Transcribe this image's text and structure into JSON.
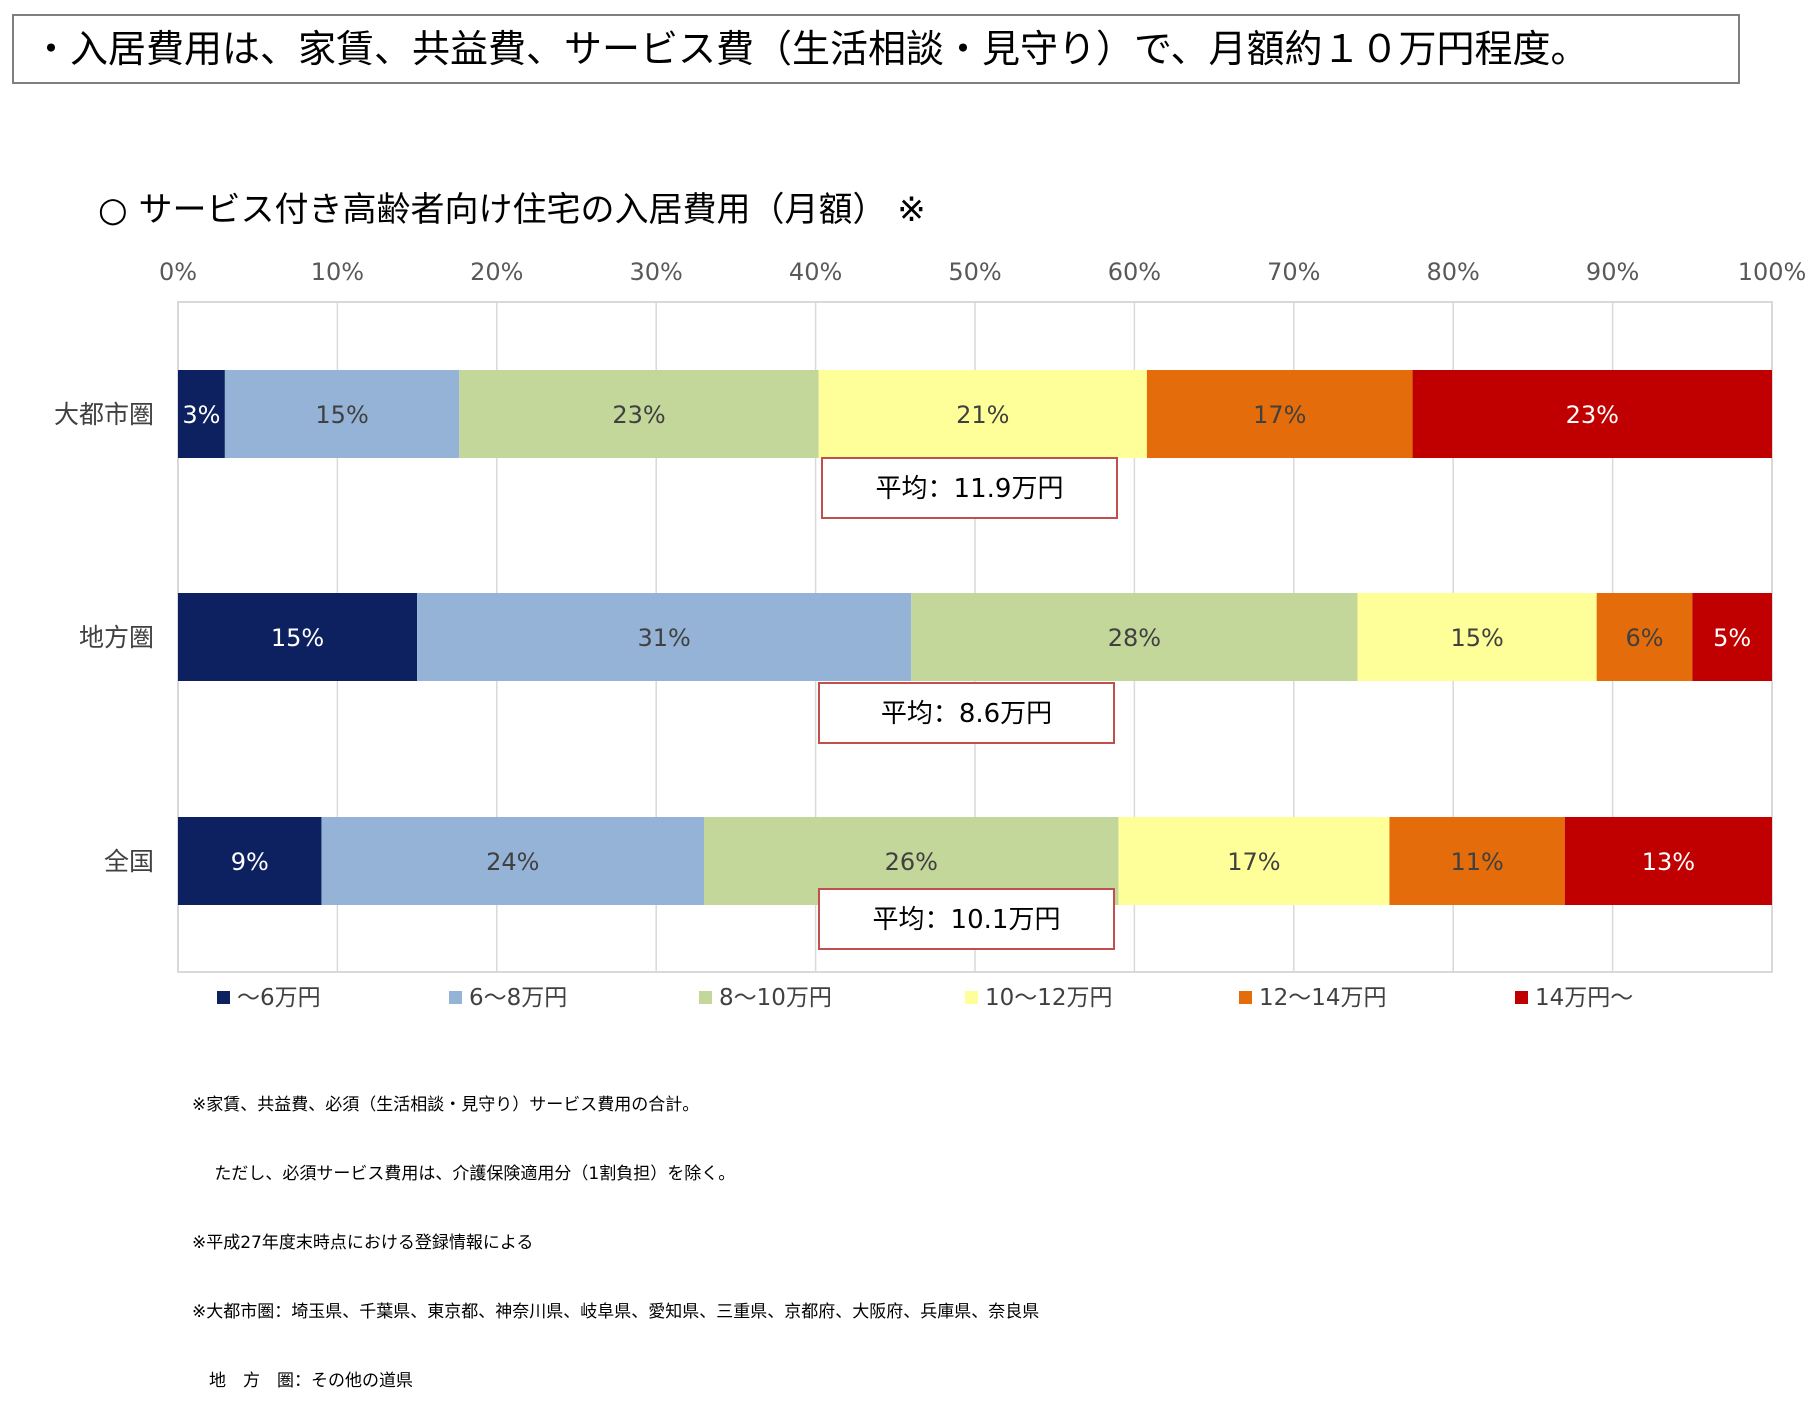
{
  "headline": "・入居費用は、家賃、共益費、サービス費（生活相談・見守り）で、月額約１０万円程度。",
  "chart_data": {
    "type": "bar",
    "orientation": "horizontal",
    "stacked": "percent",
    "title": "○ サービス付き高齢者向け住宅の入居費用（月額） ※",
    "xlabel": "",
    "ylabel": "",
    "xlim": [
      0,
      100
    ],
    "x_ticks": [
      "0%",
      "10%",
      "20%",
      "30%",
      "40%",
      "50%",
      "60%",
      "70%",
      "80%",
      "90%",
      "100%"
    ],
    "grid": true,
    "legend_position": "bottom",
    "categories": [
      "大都市圏",
      "地方圏",
      "全国"
    ],
    "series": [
      {
        "name": "～6万円",
        "color": "#0d2160",
        "label_color": "#ffffff",
        "values": [
          3,
          15,
          9
        ],
        "labels": [
          "3%",
          "15%",
          "9%"
        ]
      },
      {
        "name": "6～8万円",
        "color": "#95b3d7",
        "label_color": "#404040",
        "values": [
          15,
          31,
          24
        ],
        "labels": [
          "15%",
          "31%",
          "24%"
        ]
      },
      {
        "name": "8～10万円",
        "color": "#c4d79b",
        "label_color": "#404040",
        "values": [
          23,
          28,
          26
        ],
        "labels": [
          "23%",
          "28%",
          "26%"
        ]
      },
      {
        "name": "10～12万円",
        "color": "#ffff99",
        "label_color": "#404040",
        "values": [
          21,
          15,
          17
        ],
        "labels": [
          "21%",
          "15%",
          "17%"
        ]
      },
      {
        "name": "12～14万円",
        "color": "#e46c0a",
        "label_color": "#404040",
        "values": [
          17,
          6,
          11
        ],
        "labels": [
          "17%",
          "6%",
          "11%"
        ]
      },
      {
        "name": "14万円～",
        "color": "#c00000",
        "label_color": "#ffffff",
        "values": [
          23,
          5,
          13
        ],
        "labels": [
          "23%",
          "5%",
          "13%"
        ]
      }
    ],
    "annotations": [
      "平均：11.9万円",
      "平均：8.6万円",
      "平均：10.1万円"
    ],
    "annotation_border_color": "#c0504d"
  },
  "notes": [
    "※家賃、共益費、必須（生活相談・見守り）サービス費用の合計。",
    "　 ただし、必須サービス費用は、介護保険適用分（1割負担）を除く。",
    "※平成27年度末時点における登録情報による",
    "※大都市圏：埼玉県、千葉県、東京都、神奈川県、岐阜県、愛知県、三重県、京都府、大阪府、兵庫県、奈良県",
    "　地　方　圏：その他の道県"
  ]
}
